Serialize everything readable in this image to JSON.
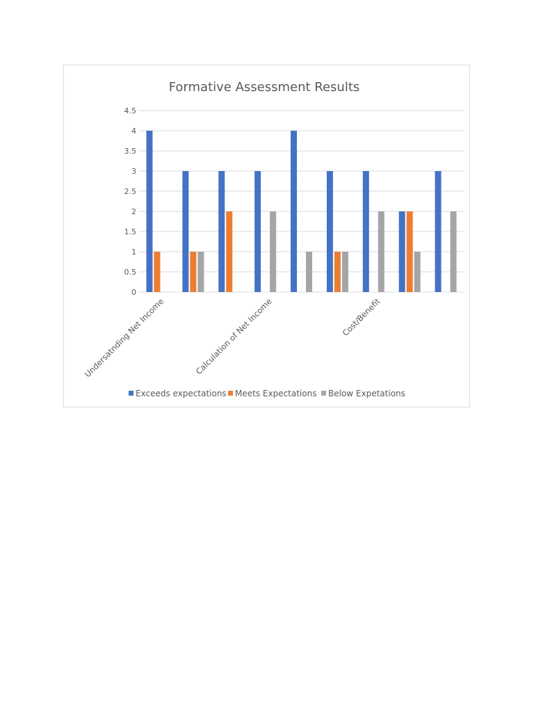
{
  "chart_data": {
    "type": "bar",
    "title": "Formative Assessment Results",
    "xlabel": "",
    "ylabel": "",
    "ylim": [
      0,
      4.5
    ],
    "yticks": [
      "0",
      "0.5",
      "1",
      "1.5",
      "2",
      "2.5",
      "3",
      "3.5",
      "4",
      "4.5"
    ],
    "grid": true,
    "legend_position": "bottom",
    "categories": [
      "Undersatnding Net Income",
      "",
      "",
      "Calculation of Net Income",
      "",
      "",
      "Cost/Benefit",
      "",
      ""
    ],
    "series": [
      {
        "name": "Exceeds expectations",
        "color": "#4472c4",
        "values": [
          4,
          3,
          3,
          3,
          4,
          3,
          3,
          2,
          3
        ]
      },
      {
        "name": "Meets Expectations",
        "color": "#ed7d31",
        "values": [
          1,
          1,
          2,
          null,
          null,
          1,
          null,
          2,
          null
        ]
      },
      {
        "name": "Below Expetations",
        "color": "#a5a5a5",
        "values": [
          null,
          1,
          null,
          2,
          1,
          1,
          2,
          1,
          2
        ]
      }
    ]
  }
}
